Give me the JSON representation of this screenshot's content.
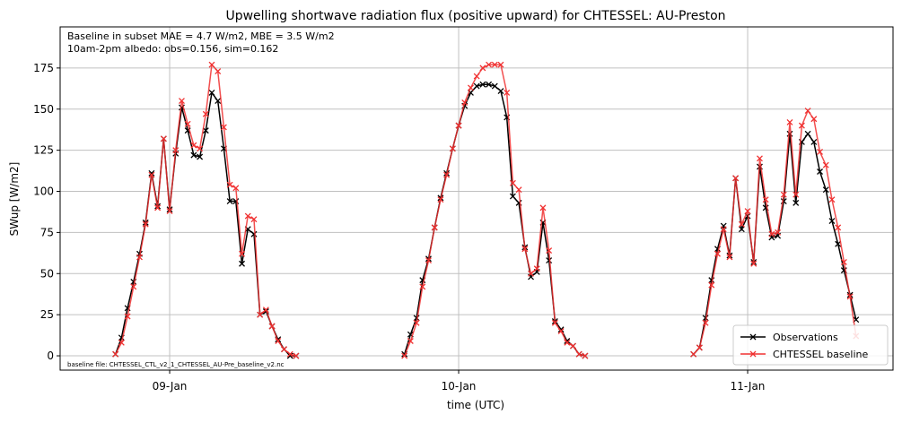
{
  "chart_data": {
    "type": "line",
    "title": "Upwelling shortwave radiation flux (positive upward) for CHTESSEL: AU-Preston",
    "annotations": [
      "Baseline in subset MAE = 4.7 W/m2, MBE = 3.5 W/m2",
      "10am-2pm albedo: obs=0.156, sim=0.162"
    ],
    "footnote": "baseline file: CHTESSEL_CTL_v2_1_CHTESSEL_AU-Pre_baseline_v2.nc",
    "x_label": "time (UTC)",
    "y_label": "SWup [W/m2]",
    "xlim": [
      8.621,
      11.503
    ],
    "ylim": [
      -8.7,
      200
    ],
    "xticks": [
      {
        "value": 9,
        "label": "09-Jan"
      },
      {
        "value": 10,
        "label": "10-Jan"
      },
      {
        "value": 11,
        "label": "11-Jan"
      }
    ],
    "yticks": [
      0,
      25,
      50,
      75,
      100,
      125,
      150,
      175
    ],
    "grid": true,
    "legend": "lower right",
    "x": [
      [
        8.8125,
        8.8333,
        8.8542,
        8.875,
        8.8958,
        8.9167,
        8.9375,
        8.9583,
        8.9792,
        9.0,
        9.0208,
        9.0417,
        9.0625,
        9.0833,
        9.1042,
        9.125,
        9.1458,
        9.1667,
        9.1875,
        9.2083,
        9.2292,
        9.25,
        9.2708,
        9.2917,
        9.3125,
        9.3333,
        9.3542,
        9.375,
        9.3958,
        9.4167,
        9.4375
      ],
      [
        9.8125,
        9.8333,
        9.8542,
        9.875,
        9.8958,
        9.9167,
        9.9375,
        9.9583,
        9.9792,
        10.0,
        10.0208,
        10.0417,
        10.0625,
        10.0833,
        10.1042,
        10.125,
        10.1458,
        10.1667,
        10.1875,
        10.2083,
        10.2292,
        10.25,
        10.2708,
        10.2917,
        10.3125,
        10.3333,
        10.3542,
        10.375,
        10.3958,
        10.4167,
        10.4375
      ],
      [
        10.8125,
        10.8333,
        10.8542,
        10.875,
        10.8958,
        10.9167,
        10.9375,
        10.9583,
        10.9792,
        11.0,
        11.0208,
        11.0417,
        11.0625,
        11.0833,
        11.1042,
        11.125,
        11.1458,
        11.1667,
        11.1875,
        11.2083,
        11.2292,
        11.25,
        11.2708,
        11.2917,
        11.3125,
        11.3333,
        11.3542,
        11.375
      ]
    ],
    "series": [
      {
        "name": "Observations",
        "color": "#000000",
        "values": [
          [
            1,
            11,
            29,
            45,
            62,
            81,
            111,
            91,
            132,
            89,
            123,
            151,
            137,
            122,
            121,
            137,
            160,
            155,
            126,
            94,
            94,
            56,
            77,
            74,
            25,
            27,
            18,
            10,
            4,
            0,
            0
          ],
          [
            1,
            13,
            23,
            46,
            59,
            78,
            96,
            111,
            126,
            140,
            152,
            160,
            164,
            165,
            165,
            164,
            161,
            145,
            97,
            93,
            66,
            48,
            51,
            81,
            58,
            21,
            16,
            9,
            6,
            1,
            0
          ],
          [
            1,
            5,
            23,
            46,
            65,
            79,
            61,
            108,
            77,
            85,
            57,
            115,
            90,
            72,
            73,
            94,
            135,
            93,
            130,
            135,
            130,
            112,
            101,
            82,
            68,
            52,
            37,
            22
          ]
        ]
      },
      {
        "name": "CHTESSEL baseline",
        "color": "#f03030",
        "values": [
          [
            1,
            8,
            24,
            42,
            60,
            80,
            110,
            90,
            132,
            88,
            125,
            155,
            141,
            128,
            126,
            147,
            177,
            173,
            139,
            104,
            102,
            62,
            85,
            83,
            25,
            28,
            18,
            9,
            4,
            1,
            0
          ],
          [
            0,
            9,
            20,
            42,
            58,
            78,
            95,
            110,
            126,
            140,
            154,
            163,
            170,
            175,
            177,
            177,
            177,
            160,
            105,
            101,
            65,
            50,
            53,
            90,
            64,
            20,
            15,
            8,
            6,
            1,
            0
          ],
          [
            1,
            5,
            20,
            43,
            62,
            77,
            60,
            108,
            80,
            88,
            56,
            120,
            95,
            74,
            75,
            98,
            142,
            98,
            140,
            149,
            144,
            124,
            116,
            95,
            78,
            57,
            36,
            12
          ]
        ]
      }
    ]
  }
}
